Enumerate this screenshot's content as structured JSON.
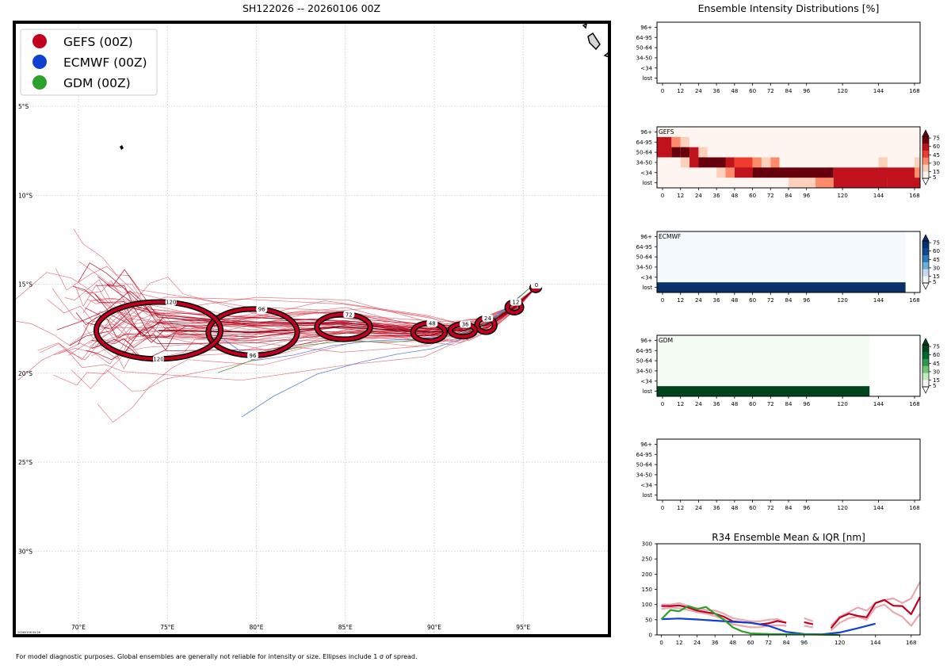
{
  "figure": {
    "map_title": "SH122026 -- 20260106 00Z",
    "panel_title": "Ensemble Intensity Distributions [%]",
    "footer": "For model diagnostic purposes. Global ensembles are generally not reliable for intensity or size. Ellipses include 1 σ of spread.",
    "stamp": "20260106 09:26"
  },
  "chart_data": [
    {
      "type": "map",
      "id": "track-map",
      "title": "SH122026 -- 20260106 00Z",
      "lon_labels": [
        "70°E",
        "75°E",
        "80°E",
        "85°E",
        "90°E",
        "95°E"
      ],
      "lon_values": [
        70,
        75,
        80,
        85,
        90,
        95
      ],
      "lat_labels": [
        "5°S",
        "10°S",
        "15°S",
        "20°S",
        "25°S",
        "30°S"
      ],
      "lat_values": [
        -5,
        -10,
        -15,
        -20,
        -25,
        -30
      ],
      "legend": [
        {
          "label": "GEFS (00Z)",
          "color": "#c1001f"
        },
        {
          "label": "ECMWF (00Z)",
          "color": "#1040d0"
        },
        {
          "label": "GDM (00Z)",
          "color": "#2ca02c"
        }
      ],
      "mean_track": [
        {
          "hour": "0",
          "lon": 95.7,
          "lat": -15.2
        },
        {
          "hour": "12",
          "lon": 94.5,
          "lat": -16.3
        },
        {
          "hour": "24",
          "lon": 92.9,
          "lat": -17.3
        },
        {
          "hour": "36",
          "lon": 91.6,
          "lat": -17.6
        },
        {
          "hour": "48",
          "lon": 89.7,
          "lat": -17.7
        },
        {
          "hour": "72",
          "lon": 84.9,
          "lat": -17.4
        },
        {
          "hour": "96",
          "lon": 79.8,
          "lat": -17.7
        },
        {
          "hour": "120",
          "lon": 74.5,
          "lat": -17.6
        }
      ],
      "ellipses": [
        {
          "hour": "0",
          "lon": 95.7,
          "lat": -15.2,
          "dlon": 0.2,
          "dlat": 0.15
        },
        {
          "hour": "12",
          "lon": 94.5,
          "lat": -16.3,
          "dlon": 0.4,
          "dlat": 0.3
        },
        {
          "hour": "24",
          "lon": 92.9,
          "lat": -17.3,
          "dlon": 0.5,
          "dlat": 0.4
        },
        {
          "hour": "36",
          "lon": 91.6,
          "lat": -17.6,
          "dlon": 0.7,
          "dlat": 0.35
        },
        {
          "hour": "48",
          "lon": 89.7,
          "lat": -17.7,
          "dlon": 0.9,
          "dlat": 0.5
        },
        {
          "hour": "72",
          "lon": 84.9,
          "lat": -17.4,
          "dlon": 1.5,
          "dlat": 0.7
        },
        {
          "hour": "96",
          "lon": 79.8,
          "lat": -17.7,
          "dlon": 2.5,
          "dlat": 1.3
        },
        {
          "hour": "120",
          "lon": 74.5,
          "lat": -17.6,
          "dlon": 3.5,
          "dlat": 1.6
        }
      ]
    },
    {
      "type": "heatmap",
      "id": "blank-top",
      "label": "",
      "x_ticks": [
        0,
        12,
        24,
        36,
        48,
        60,
        72,
        84,
        96,
        120,
        144,
        168
      ],
      "y_labels": [
        "96+",
        "64-95",
        "50-64",
        "34-50",
        "<34",
        "lost"
      ],
      "cells": []
    },
    {
      "type": "heatmap",
      "id": "gefs",
      "label": "GEFS",
      "scheme": "reds",
      "x_ticks": [
        0,
        12,
        24,
        36,
        48,
        60,
        72,
        84,
        96,
        120,
        144,
        168
      ],
      "y_labels": [
        "96+",
        "64-95",
        "50-64",
        "34-50",
        "<34",
        "lost"
      ],
      "colorbar_ticks": [
        5,
        15,
        30,
        45,
        60,
        75
      ],
      "rows": {
        "96+": [
          [
            0,
            174,
            3
          ]
        ],
        "64-95": [
          [
            0,
            6,
            65
          ],
          [
            6,
            12,
            25
          ],
          [
            12,
            18,
            12
          ],
          [
            18,
            174,
            3
          ]
        ],
        "50-64": [
          [
            0,
            6,
            55
          ],
          [
            6,
            12,
            80
          ],
          [
            12,
            18,
            80
          ],
          [
            18,
            24,
            50
          ],
          [
            24,
            30,
            12
          ],
          [
            30,
            174,
            3
          ]
        ],
        "34-50": [
          [
            0,
            12,
            3
          ],
          [
            12,
            18,
            12
          ],
          [
            18,
            24,
            60
          ],
          [
            24,
            42,
            90
          ],
          [
            42,
            48,
            60
          ],
          [
            48,
            60,
            40
          ],
          [
            60,
            66,
            15
          ],
          [
            66,
            72,
            6
          ],
          [
            72,
            78,
            15
          ],
          [
            78,
            144,
            3
          ],
          [
            144,
            150,
            10
          ],
          [
            150,
            168,
            3
          ],
          [
            168,
            174,
            12
          ]
        ],
        "<34": [
          [
            0,
            36,
            3
          ],
          [
            36,
            42,
            10
          ],
          [
            42,
            48,
            25
          ],
          [
            48,
            60,
            65
          ],
          [
            60,
            114,
            92
          ],
          [
            114,
            126,
            65
          ],
          [
            126,
            168,
            45
          ],
          [
            168,
            174,
            25
          ]
        ],
        "lost": [
          [
            0,
            84,
            3
          ],
          [
            84,
            90,
            8
          ],
          [
            90,
            96,
            6
          ],
          [
            96,
            102,
            8
          ],
          [
            102,
            114,
            25
          ],
          [
            114,
            126,
            45
          ],
          [
            126,
            150,
            60
          ],
          [
            150,
            174,
            70
          ]
        ]
      }
    },
    {
      "type": "heatmap",
      "id": "ecmwf",
      "label": "ECMWF",
      "scheme": "blues",
      "x_ticks": [
        0,
        12,
        24,
        36,
        48,
        60,
        72,
        84,
        96,
        120,
        144,
        168
      ],
      "y_labels": [
        "96+",
        "64-95",
        "50-64",
        "34-50",
        "<34",
        "lost"
      ],
      "colorbar_ticks": [
        5,
        15,
        30,
        45,
        60,
        75
      ],
      "rows": {
        "96+": [
          [
            0,
            162,
            3
          ]
        ],
        "64-95": [
          [
            0,
            162,
            3
          ]
        ],
        "50-64": [
          [
            0,
            162,
            3
          ]
        ],
        "34-50": [
          [
            0,
            162,
            3
          ]
        ],
        "<34": [
          [
            0,
            162,
            3
          ]
        ],
        "lost": [
          [
            0,
            162,
            100
          ]
        ]
      }
    },
    {
      "type": "heatmap",
      "id": "gdm",
      "label": "GDM",
      "scheme": "greens",
      "x_ticks": [
        0,
        12,
        24,
        36,
        48,
        60,
        72,
        84,
        96,
        120,
        144,
        168
      ],
      "y_labels": [
        "96+",
        "64-95",
        "50-64",
        "34-50",
        "<34",
        "lost"
      ],
      "colorbar_ticks": [
        5,
        15,
        30,
        45,
        60,
        75
      ],
      "rows": {
        "96+": [
          [
            0,
            138,
            3
          ]
        ],
        "64-95": [
          [
            0,
            138,
            3
          ]
        ],
        "50-64": [
          [
            0,
            138,
            3
          ]
        ],
        "34-50": [
          [
            0,
            138,
            3
          ]
        ],
        "<34": [
          [
            0,
            138,
            3
          ]
        ],
        "lost": [
          [
            0,
            138,
            100
          ]
        ]
      }
    },
    {
      "type": "heatmap",
      "id": "blank-bottom",
      "label": "",
      "x_ticks": [
        0,
        12,
        24,
        36,
        48,
        60,
        72,
        84,
        96,
        120,
        144,
        168
      ],
      "y_labels": [
        "96+",
        "64-95",
        "50-64",
        "34-50",
        "<34",
        "lost"
      ],
      "cells": []
    },
    {
      "type": "line",
      "id": "r34",
      "title": "R34 Ensemble Mean & IQR [nm]",
      "x_ticks": [
        0,
        12,
        24,
        36,
        48,
        60,
        72,
        84,
        96,
        120,
        144,
        168
      ],
      "y_ticks": [
        0,
        50,
        100,
        150,
        200,
        250,
        300
      ],
      "xlim": [
        -3,
        174
      ],
      "ylim": [
        0,
        300
      ],
      "series": [
        {
          "name": "GEFS IQR high",
          "color": "#e7a8b0",
          "segments": [
            [
              [
                0,
                100
              ],
              [
                6,
                100
              ],
              [
                12,
                105
              ],
              [
                18,
                95
              ],
              [
                24,
                88
              ],
              [
                30,
                82
              ],
              [
                36,
                80
              ],
              [
                42,
                70
              ],
              [
                48,
                55
              ],
              [
                54,
                50
              ],
              [
                60,
                45
              ],
              [
                66,
                45
              ],
              [
                72,
                50
              ],
              [
                78,
                52
              ],
              [
                84,
                40
              ]
            ],
            [
              [
                96,
                55
              ],
              [
                102,
                45
              ]
            ],
            [
              [
                114,
                30
              ],
              [
                120,
                60
              ],
              [
                126,
                75
              ],
              [
                132,
                90
              ],
              [
                138,
                80
              ],
              [
                144,
                105
              ],
              [
                150,
                115
              ],
              [
                156,
                120
              ],
              [
                162,
                105
              ],
              [
                168,
                120
              ],
              [
                174,
                175
              ]
            ]
          ]
        },
        {
          "name": "GEFS IQR low",
          "color": "#e7a8b0",
          "segments": [
            [
              [
                0,
                85
              ],
              [
                6,
                90
              ],
              [
                12,
                88
              ],
              [
                18,
                82
              ],
              [
                24,
                75
              ],
              [
                30,
                70
              ],
              [
                36,
                62
              ],
              [
                42,
                52
              ],
              [
                48,
                35
              ],
              [
                54,
                30
              ],
              [
                60,
                25
              ],
              [
                66,
                25
              ],
              [
                72,
                30
              ],
              [
                78,
                32
              ],
              [
                84,
                30
              ]
            ],
            [
              [
                96,
                30
              ],
              [
                102,
                25
              ]
            ],
            [
              [
                114,
                15
              ],
              [
                120,
                40
              ],
              [
                126,
                55
              ],
              [
                132,
                60
              ],
              [
                138,
                50
              ],
              [
                144,
                90
              ],
              [
                150,
                100
              ],
              [
                156,
                75
              ],
              [
                162,
                60
              ],
              [
                168,
                30
              ],
              [
                174,
                70
              ]
            ]
          ]
        },
        {
          "name": "GEFS mean",
          "color": "#c1001f",
          "segments": [
            [
              [
                0,
                95
              ],
              [
                6,
                95
              ],
              [
                12,
                97
              ],
              [
                18,
                90
              ],
              [
                24,
                80
              ],
              [
                30,
                75
              ],
              [
                36,
                70
              ],
              [
                42,
                60
              ],
              [
                48,
                45
              ],
              [
                54,
                42
              ],
              [
                60,
                40
              ],
              [
                66,
                35
              ],
              [
                72,
                38
              ],
              [
                78,
                46
              ],
              [
                84,
                40
              ]
            ],
            [
              [
                96,
                42
              ],
              [
                102,
                35
              ]
            ],
            [
              [
                114,
                22
              ],
              [
                120,
                57
              ],
              [
                126,
                70
              ],
              [
                132,
                63
              ],
              [
                138,
                58
              ],
              [
                144,
                105
              ],
              [
                150,
                115
              ],
              [
                156,
                96
              ],
              [
                162,
                95
              ],
              [
                168,
                68
              ],
              [
                174,
                125
              ]
            ]
          ]
        },
        {
          "name": "ECMWF mean",
          "color": "#1040d0",
          "segments": [
            [
              [
                0,
                52
              ],
              [
                12,
                54
              ],
              [
                24,
                51
              ],
              [
                36,
                47
              ],
              [
                48,
                43
              ],
              [
                60,
                40
              ],
              [
                72,
                30
              ],
              [
                84,
                10
              ],
              [
                96,
                3
              ],
              [
                108,
                2
              ],
              [
                120,
                8
              ],
              [
                132,
                22
              ],
              [
                144,
                37
              ]
            ]
          ]
        },
        {
          "name": "GDM mean",
          "color": "#2ca02c",
          "segments": [
            [
              [
                0,
                52
              ],
              [
                6,
                82
              ],
              [
                12,
                78
              ],
              [
                18,
                95
              ],
              [
                24,
                85
              ],
              [
                30,
                92
              ],
              [
                36,
                70
              ],
              [
                42,
                50
              ],
              [
                48,
                25
              ],
              [
                54,
                12
              ],
              [
                60,
                5
              ],
              [
                72,
                3
              ],
              [
                84,
                2
              ],
              [
                96,
                2
              ],
              [
                108,
                1
              ],
              [
                120,
                0
              ]
            ]
          ]
        }
      ]
    }
  ]
}
